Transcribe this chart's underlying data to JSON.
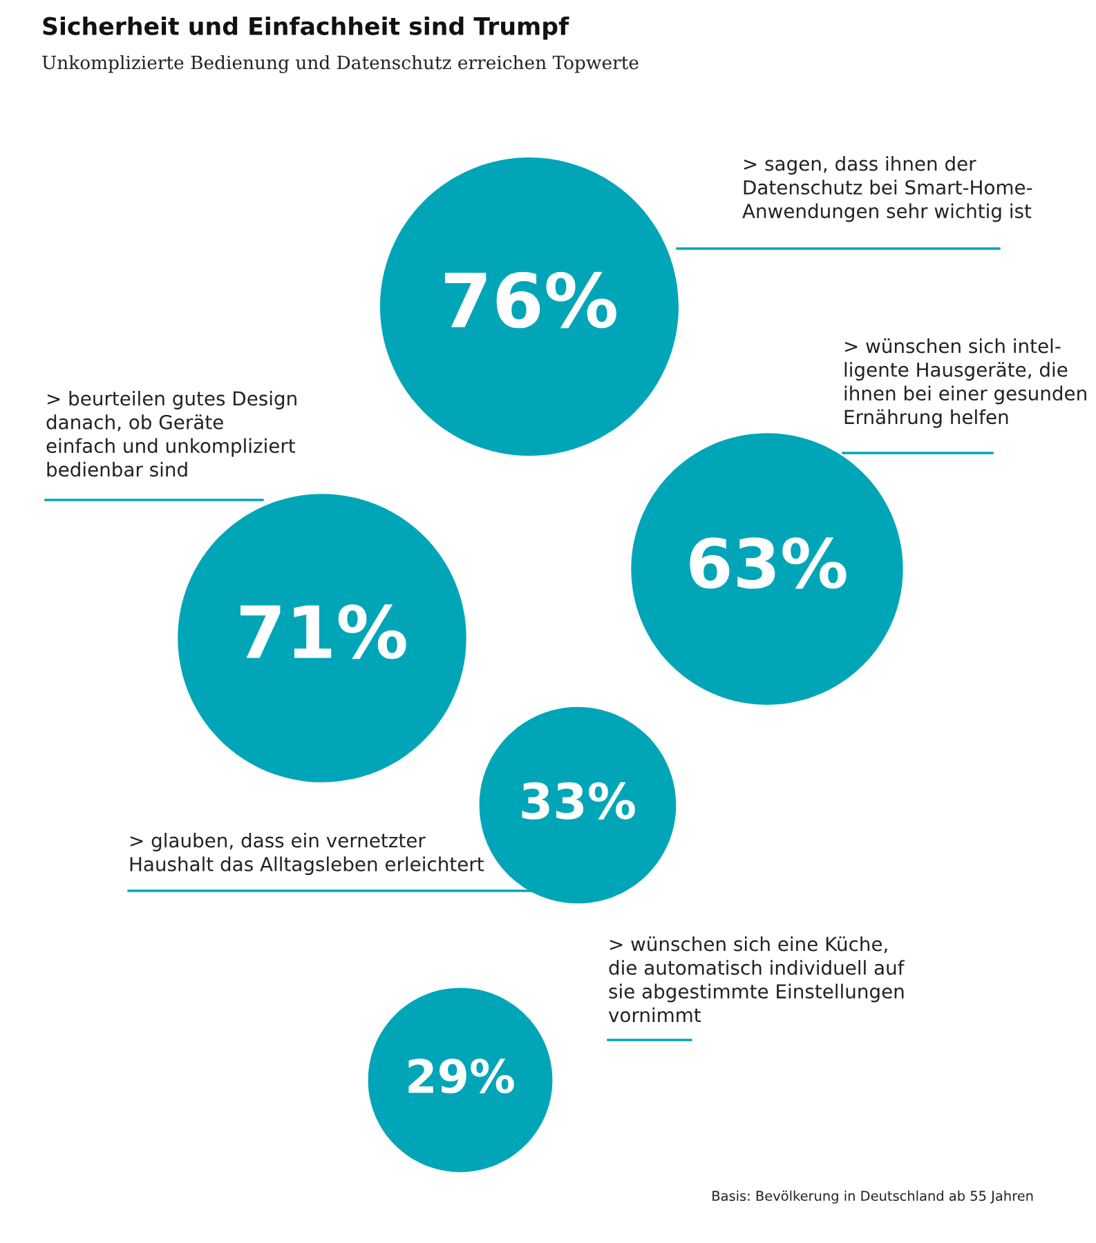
{
  "chart_data": {
    "type": "other",
    "title": "Sicherheit und Einfachheit sind Trumpf",
    "subtitle": "Unkomplizierte Bedienung und Datenschutz erreichen Topwerte",
    "categories": [
      "> sagen, dass ihnen der\nDatenschutz bei Smart-Home-\nAnwendungen sehr wichtig ist",
      "> wünschen sich intel-\nligente Hausgeräte, die\nihnen bei einer gesunden\nErnährung helfen",
      "> beurteilen gutes Design\ndanach, ob Geräte\neinfach und unkompliziert\nbedienbar sind",
      "> glauben, dass ein vernetzter\nHaushalt das Alltagsleben erleichtert",
      "> wünschen sich eine Küche,\ndie automatisch individuell auf\nsie abgestimmte Einstellungen\nvornimmt"
    ],
    "values": [
      76,
      63,
      71,
      33,
      29
    ],
    "value_labels": [
      "76%",
      "63%",
      "71%",
      "33%",
      "29%"
    ],
    "color": "#00a6b8",
    "annotations": [
      "Basis: Bevölkerung in Deutschland ab 55 Jahren"
    ]
  }
}
